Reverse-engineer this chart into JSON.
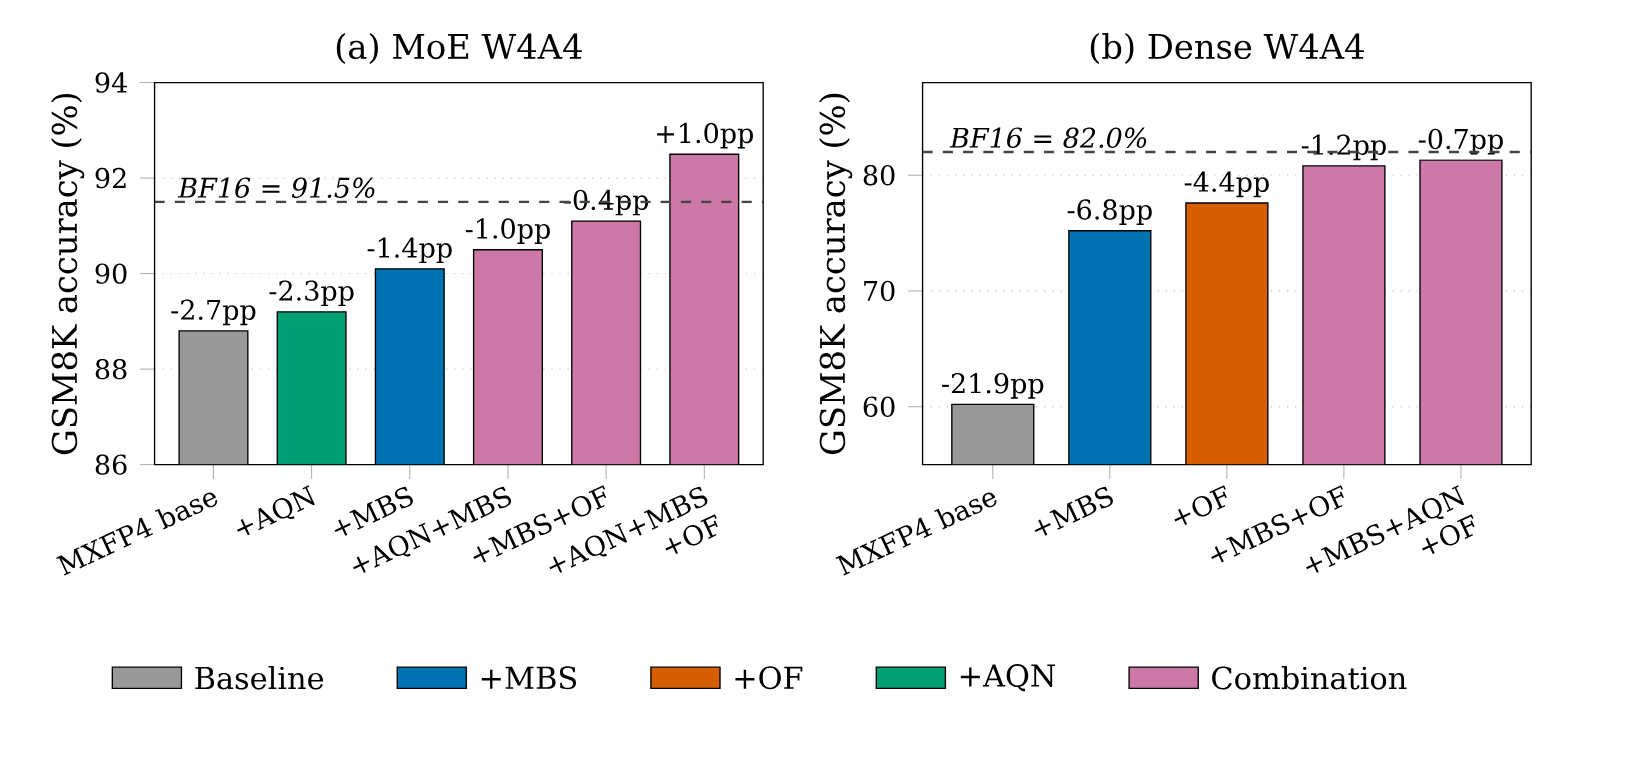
{
  "chart_data": [
    {
      "type": "bar",
      "title": "(a) MoE W4A4",
      "ylabel": "GSM8K accuracy (%)",
      "categories": [
        "MXFP4 base",
        "+AQN",
        "+MBS",
        "+AQN+MBS",
        "+MBS+OF",
        "+AQN+MBS +OF"
      ],
      "series": [
        {
          "color": "#999999",
          "values": [
            88.8,
            null,
            null,
            null,
            null,
            null
          ]
        },
        {
          "color": "#0072b2",
          "values": [
            null,
            null,
            90.1,
            null,
            null,
            null
          ]
        },
        {
          "name": "+AQN",
          "color": "#009e73",
          "values": [
            null,
            89.2,
            null,
            null,
            null,
            null
          ]
        },
        {
          "color": "#cc79a7",
          "values": [
            null,
            null,
            null,
            90.5,
            91.1,
            92.5
          ]
        }
      ],
      "annotations": [
        {
          "text": "-2.7pp",
          "x": "MXFP4 base",
          "y": 88.8
        },
        {
          "text": "-2.3pp",
          "x": "+AQN",
          "y": 89.2
        },
        {
          "text": "-1.4pp",
          "x": "+MBS",
          "y": 90.1
        },
        {
          "text": "-1.0pp",
          "x": "+AQN+MBS",
          "y": 90.5
        },
        {
          "text": "-0.4pp",
          "x": "+MBS+OF",
          "y": 91.1
        },
        {
          "text": "+1.0pp",
          "x": "+AQN+MBS +OF",
          "y": 92.5
        }
      ],
      "ylim": [
        86,
        94
      ],
      "yticks": [
        86,
        88,
        90,
        92,
        94
      ],
      "grid": "y",
      "legend": "bottom",
      "ref_lines": [
        {
          "axis": "y",
          "value": 91.5,
          "label": "BF16 = 91.5%",
          "color": "#444444",
          "line_style": "dashed"
        }
      ]
    },
    {
      "type": "bar",
      "title": "(b) Dense W4A4",
      "ylabel": "GSM8K accuracy (%)",
      "categories": [
        "MXFP4 base",
        "+MBS",
        "+OF",
        "+MBS+OF",
        "+MBS+AQN +OF"
      ],
      "series": [
        {
          "name": "Baseline",
          "color": "#999999",
          "values": [
            60.2,
            null,
            null,
            null,
            null
          ]
        },
        {
          "name": "+MBS",
          "color": "#0072b2",
          "values": [
            null,
            75.2,
            null,
            null,
            null
          ]
        },
        {
          "name": "+OF",
          "color": "#d55e00",
          "values": [
            null,
            null,
            77.6,
            null,
            null
          ]
        },
        {
          "name": "Combination",
          "color": "#cc79a7",
          "values": [
            null,
            null,
            null,
            80.8,
            81.3
          ]
        }
      ],
      "annotations": [
        {
          "text": "-21.9pp",
          "x": "MXFP4 base",
          "y": 60.2
        },
        {
          "text": "-6.8pp",
          "x": "+MBS",
          "y": 75.2
        },
        {
          "text": "-4.4pp",
          "x": "+OF",
          "y": 77.6
        },
        {
          "text": "-1.2pp",
          "x": "+MBS+OF",
          "y": 80.8
        },
        {
          "text": "-0.7pp",
          "x": "+MBS+AQN +OF",
          "y": 81.3
        }
      ],
      "ylim": [
        55,
        88
      ],
      "yticks": [
        60,
        70,
        80
      ],
      "grid": "y",
      "legend": "bottom",
      "ref_lines": [
        {
          "axis": "y",
          "value": 82.0,
          "label": "BF16 = 82.0%",
          "color": "#444444",
          "line_style": "dashed"
        }
      ]
    }
  ]
}
